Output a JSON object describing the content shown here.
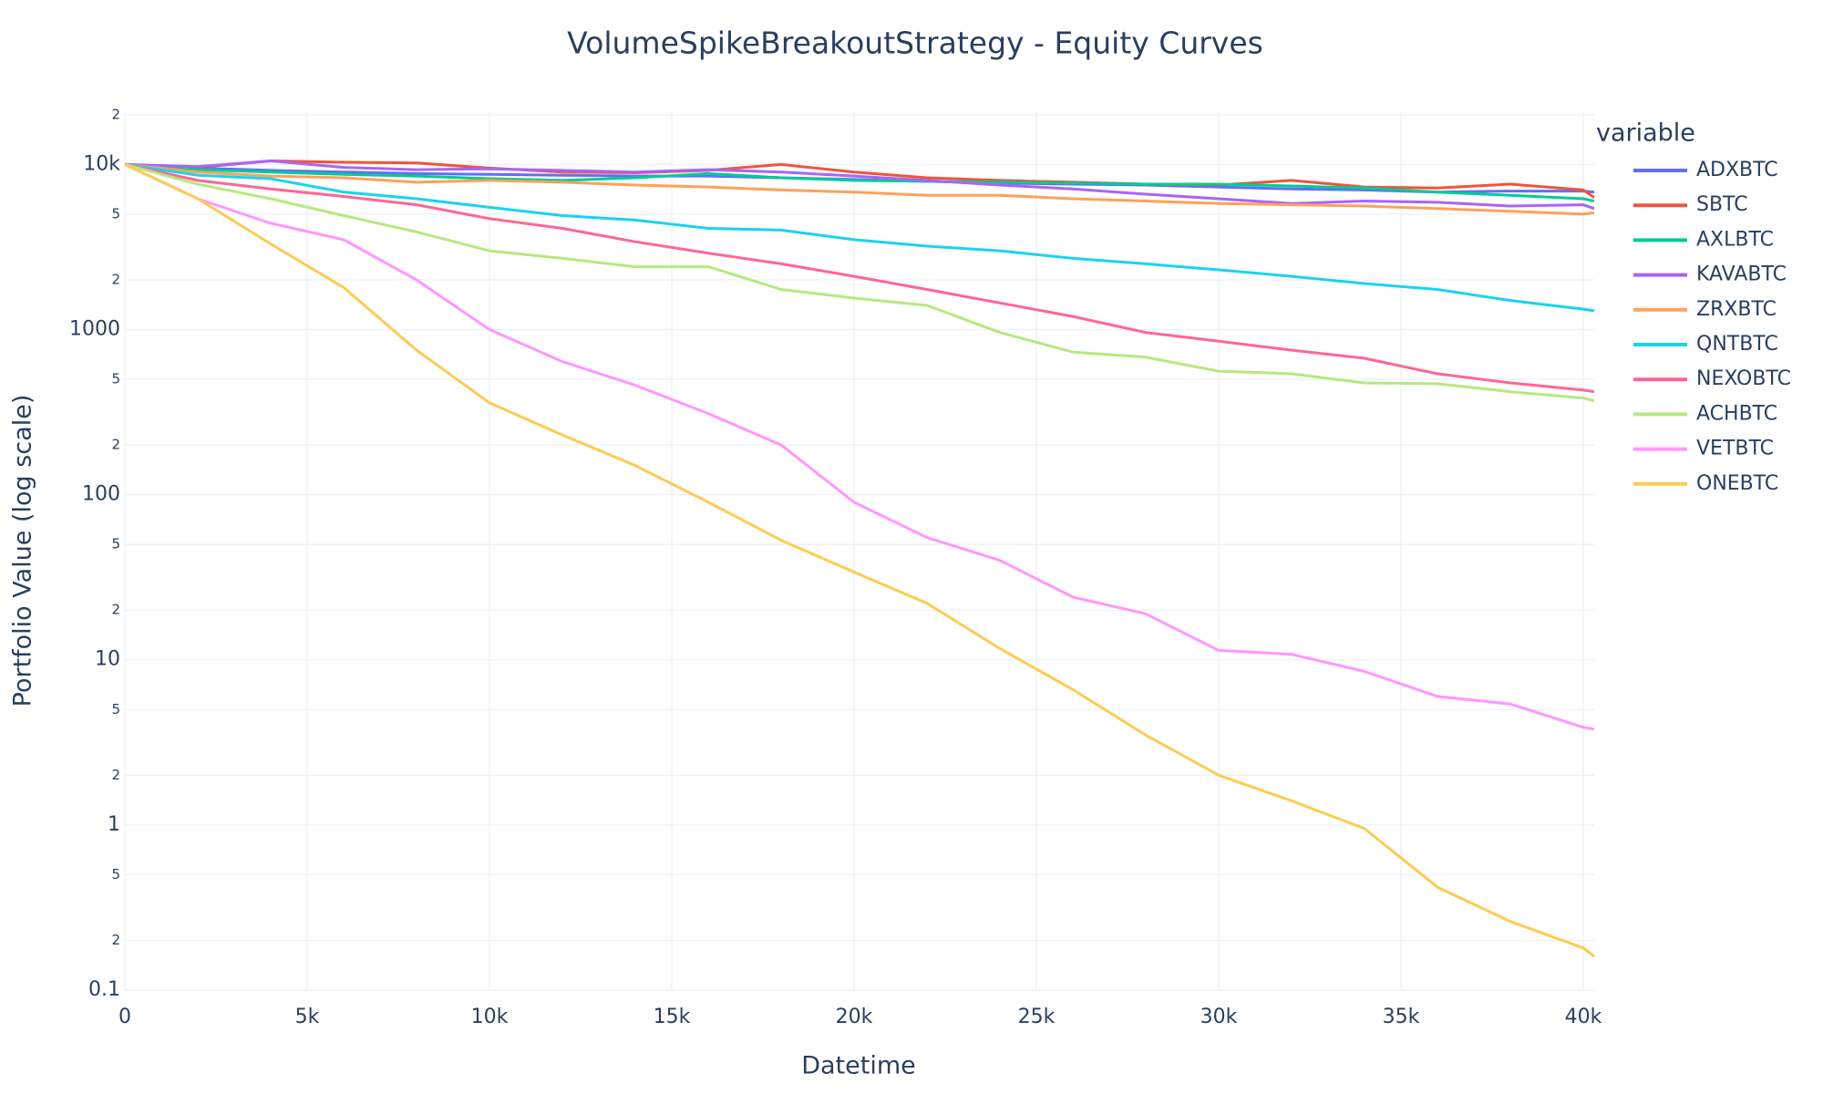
{
  "chart_data": {
    "type": "line",
    "title": "VolumeSpikeBreakoutStrategy - Equity Curves",
    "x_label": "Datetime",
    "y_label": "Portfolio Value (log scale)",
    "legend_title": "variable",
    "legend_position": "right",
    "grid": true,
    "y_log": true,
    "x": [
      0,
      2000,
      4000,
      6000,
      8000,
      10000,
      12000,
      14000,
      16000,
      18000,
      20000,
      22000,
      24000,
      26000,
      28000,
      30000,
      32000,
      34000,
      36000,
      38000,
      40000,
      40300
    ],
    "xlim": [
      0,
      40300
    ],
    "xticks": [
      0,
      {
        "value": 5000,
        "label": "5k"
      },
      {
        "value": 10000,
        "label": "10k"
      },
      {
        "value": 15000,
        "label": "15k"
      },
      {
        "value": 20000,
        "label": "20k"
      },
      {
        "value": 25000,
        "label": "25k"
      },
      {
        "value": 30000,
        "label": "30k"
      },
      {
        "value": 35000,
        "label": "35k"
      },
      {
        "value": 40000,
        "label": "40k"
      }
    ],
    "ylim": [
      0.1,
      21000
    ],
    "yticks": [
      {
        "value": 20000,
        "label": "2"
      },
      {
        "value": 10000,
        "label": "10k"
      },
      {
        "value": 5000,
        "label": "5"
      },
      {
        "value": 2000,
        "label": "2"
      },
      1000,
      {
        "value": 500,
        "label": "5"
      },
      {
        "value": 200,
        "label": "2"
      },
      100,
      {
        "value": 50,
        "label": "5"
      },
      {
        "value": 20,
        "label": "2"
      },
      10,
      5,
      2,
      1,
      {
        "value": 0.5,
        "label": "5"
      },
      {
        "value": 0.2,
        "label": "2"
      },
      0.1
    ],
    "series": [
      {
        "name": "ADXBTC",
        "color": "#636efa",
        "values": [
          10000,
          9500,
          9200,
          9000,
          8800,
          8700,
          8600,
          8500,
          8500,
          8300,
          8100,
          7900,
          7700,
          7600,
          7500,
          7300,
          7100,
          7000,
          6800,
          6900,
          6900,
          6800
        ]
      },
      {
        "name": "SBTC",
        "color": "#ef553b",
        "values": [
          10000,
          9600,
          10500,
          10300,
          10200,
          9500,
          9000,
          8900,
          9200,
          10000,
          9000,
          8300,
          8000,
          7800,
          7600,
          7500,
          8000,
          7300,
          7200,
          7600,
          7000,
          6300
        ]
      },
      {
        "name": "AXLBTC",
        "color": "#00cc96",
        "values": [
          10000,
          9300,
          9000,
          8700,
          8500,
          8200,
          8000,
          8300,
          8800,
          8300,
          8000,
          7900,
          7800,
          7700,
          7600,
          7600,
          7400,
          7200,
          6800,
          6500,
          6200,
          6000
        ]
      },
      {
        "name": "KAVABTC",
        "color": "#ab63fa",
        "values": [
          10000,
          9700,
          10500,
          9600,
          9300,
          9400,
          9200,
          9000,
          9300,
          9000,
          8500,
          8000,
          7500,
          7100,
          6600,
          6200,
          5800,
          6000,
          5900,
          5600,
          5700,
          5400
        ]
      },
      {
        "name": "ZRXBTC",
        "color": "#ffa15a",
        "values": [
          10000,
          9000,
          8500,
          8300,
          7800,
          8000,
          7800,
          7500,
          7300,
          7000,
          6800,
          6500,
          6500,
          6200,
          6000,
          5800,
          5700,
          5600,
          5400,
          5200,
          5000,
          5100
        ]
      },
      {
        "name": "QNTBTC",
        "color": "#19d3f3",
        "values": [
          10000,
          8600,
          8200,
          6800,
          6200,
          5500,
          4900,
          4600,
          4100,
          4000,
          3500,
          3200,
          3000,
          2700,
          2500,
          2300,
          2100,
          1900,
          1750,
          1500,
          1330,
          1300
        ]
      },
      {
        "name": "NEXOBTC",
        "color": "#ff6692",
        "values": [
          10000,
          8000,
          7100,
          6400,
          5700,
          4700,
          4100,
          3400,
          2900,
          2500,
          2100,
          1750,
          1450,
          1200,
          960,
          850,
          750,
          670,
          540,
          475,
          430,
          420
        ]
      },
      {
        "name": "ACHBTC",
        "color": "#b6e880",
        "values": [
          10000,
          7600,
          6200,
          4900,
          3900,
          3000,
          2700,
          2400,
          2400,
          1750,
          1550,
          1400,
          960,
          730,
          680,
          560,
          540,
          475,
          470,
          420,
          385,
          370
        ]
      },
      {
        "name": "VETBTC",
        "color": "#ff97ff",
        "values": [
          10000,
          6200,
          4400,
          3500,
          2000,
          1000,
          640,
          460,
          310,
          200,
          90,
          55,
          40,
          24,
          19,
          11.4,
          10.8,
          8.5,
          6,
          5.4,
          3.9,
          3.8
        ]
      },
      {
        "name": "ONEBTC",
        "color": "#fecb52",
        "values": [
          10000,
          6200,
          3300,
          1800,
          750,
          360,
          230,
          150,
          90,
          53,
          34,
          22,
          11.7,
          6.6,
          3.5,
          2,
          1.4,
          0.95,
          0.42,
          0.26,
          0.18,
          0.16
        ]
      }
    ]
  }
}
